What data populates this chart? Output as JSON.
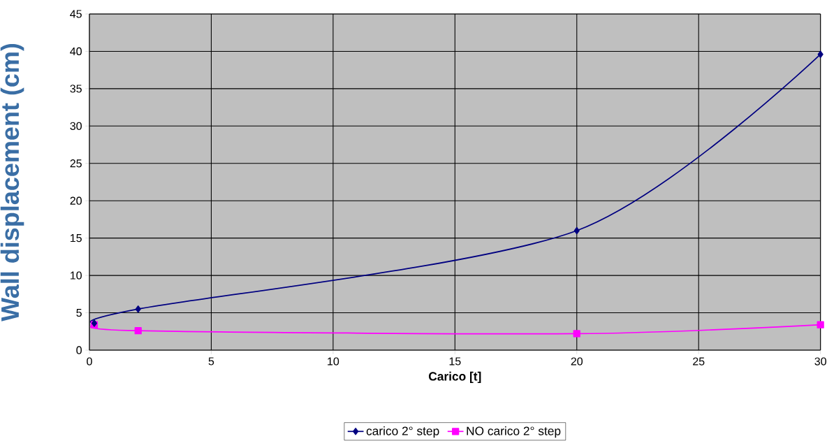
{
  "chart_data": {
    "type": "line",
    "xlabel": "Carico [t]",
    "ylabel": "Wall displacement (cm)",
    "xlim": [
      0,
      30
    ],
    "ylim": [
      0,
      45
    ],
    "xticks": [
      0,
      5,
      10,
      15,
      20,
      25,
      30
    ],
    "yticks": [
      0,
      5,
      10,
      15,
      20,
      25,
      30,
      35,
      40,
      45
    ],
    "grid": true,
    "legend": "bottom",
    "series": [
      {
        "name": "carico 2° step",
        "color": "#000080",
        "marker": "diamond",
        "x": [
          0.2,
          2,
          20,
          30
        ],
        "values": [
          3.6,
          5.5,
          16,
          39.6
        ]
      },
      {
        "name": "NO carico 2° step",
        "color": "#ff00ff",
        "marker": "square",
        "x": [
          0.2,
          2,
          20,
          30
        ],
        "values": [
          3.4,
          2.6,
          2.2,
          3.4
        ]
      }
    ]
  }
}
